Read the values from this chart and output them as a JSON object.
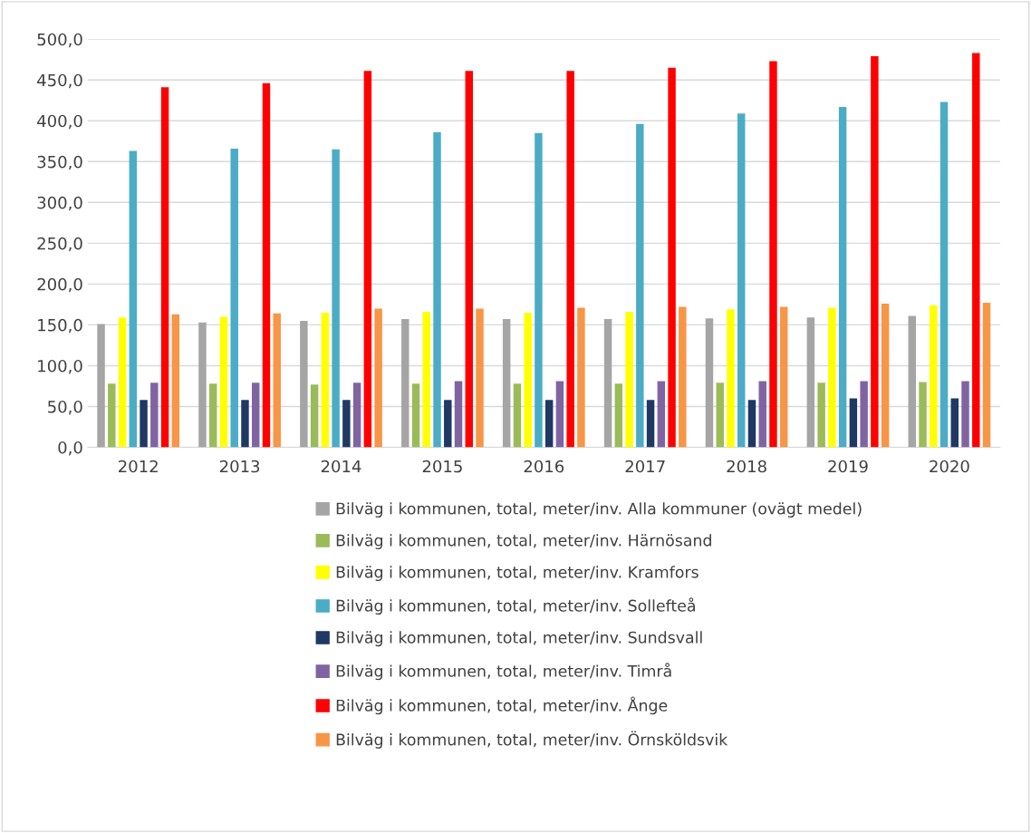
{
  "chart_data": {
    "type": "bar",
    "categories": [
      "2012",
      "2013",
      "2014",
      "2015",
      "2016",
      "2017",
      "2018",
      "2019",
      "2020"
    ],
    "series": [
      {
        "name": "Bilväg i kommunen, total, meter/inv. Alla kommuner (ovägt medel)",
        "color": "#a5a5a5",
        "values": [
          151,
          153,
          155,
          157,
          157,
          157,
          158,
          159,
          161
        ]
      },
      {
        "name": "Bilväg i kommunen, total, meter/inv. Härnösand",
        "color": "#9bbb59",
        "values": [
          78,
          78,
          77,
          78,
          78,
          78,
          79,
          79,
          80
        ]
      },
      {
        "name": "Bilväg i kommunen, total, meter/inv. Kramfors",
        "color": "#ffff00",
        "values": [
          159,
          160,
          165,
          166,
          165,
          166,
          169,
          171,
          174
        ]
      },
      {
        "name": "Bilväg i kommunen, total, meter/inv. Sollefteå",
        "color": "#4bacc6",
        "values": [
          363,
          366,
          365,
          386,
          385,
          396,
          409,
          417,
          423
        ]
      },
      {
        "name": "Bilväg i kommunen, total, meter/inv. Sundsvall",
        "color": "#1f3864",
        "values": [
          58,
          58,
          58,
          58,
          58,
          58,
          58,
          60,
          60
        ]
      },
      {
        "name": "Bilväg i kommunen, total, meter/inv. Timrå",
        "color": "#8064a2",
        "values": [
          79,
          79,
          79,
          81,
          81,
          81,
          81,
          81,
          81
        ]
      },
      {
        "name": "Bilväg i kommunen, total, meter/inv. Ånge",
        "color": "#ff0000",
        "values": [
          441,
          446,
          461,
          461,
          461,
          465,
          473,
          479,
          483
        ]
      },
      {
        "name": "Bilväg i kommunen, total, meter/inv. Örnsköldsvik",
        "color": "#f79646",
        "values": [
          163,
          164,
          170,
          170,
          171,
          172,
          172,
          176,
          177
        ]
      }
    ],
    "ylim": [
      0,
      500
    ],
    "yticks": [
      {
        "value": 0,
        "label": "0,0"
      },
      {
        "value": 50,
        "label": "50,0"
      },
      {
        "value": 100,
        "label": "100,0"
      },
      {
        "value": 150,
        "label": "150,0"
      },
      {
        "value": 200,
        "label": "200,0"
      },
      {
        "value": 250,
        "label": "250,0"
      },
      {
        "value": 300,
        "label": "300,0"
      },
      {
        "value": 350,
        "label": "350,0"
      },
      {
        "value": 400,
        "label": "400,0"
      },
      {
        "value": 450,
        "label": "450,0"
      },
      {
        "value": 500,
        "label": "500,0"
      }
    ],
    "grid": "y",
    "legend": "bottom"
  }
}
